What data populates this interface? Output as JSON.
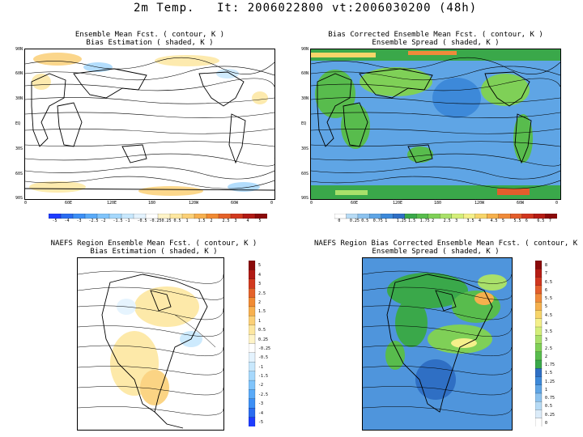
{
  "header": {
    "variable": "2m Temp.",
    "initial": "It: 2006022800",
    "valid": "vt:2006030200 (48h)"
  },
  "panels": {
    "top_left": {
      "title_line1": "Ensemble Mean Fcst. ( contour, K )",
      "title_line2": "Bias Estimation ( shaded, K )",
      "lat_ticks": [
        "90N",
        "60N",
        "30N",
        "EQ",
        "30S",
        "60S",
        "90S"
      ],
      "lon_ticks": [
        "0",
        "60E",
        "120E",
        "180",
        "120W",
        "60W",
        "0"
      ]
    },
    "top_right": {
      "title_line1": "Bias Corrected Ensemble Mean Fcst. ( contour, K )",
      "title_line2": "Ensemble Spread ( shaded, K )",
      "lat_ticks": [
        "90N",
        "60N",
        "30N",
        "EQ",
        "30S",
        "60S",
        "90S"
      ],
      "lon_ticks": [
        "0",
        "60E",
        "120E",
        "180",
        "120W",
        "60W",
        "0"
      ]
    },
    "bottom_left": {
      "title_line1": "NAEFS Region Ensemble Mean Fcst. ( contour, K )",
      "title_line2": "Bias Estimation ( shaded, K )"
    },
    "bottom_right": {
      "title_line1": "NAEFS Region Bias Corrected Ensemble Mean Fcst. ( contour, K )",
      "title_line2": "Ensemble Spread ( shaded, K )"
    }
  },
  "colorbars": {
    "bias_horizontal": {
      "labels": [
        "-5",
        "-4",
        "-3",
        "-2.5",
        "-2",
        "-1.5",
        "-1",
        "-0.5",
        "-0.25",
        "0.25",
        "0.5",
        "1",
        "1.5",
        "2",
        "2.5",
        "3",
        "4",
        "5"
      ],
      "colors": [
        "#1e3cff",
        "#2a6cf0",
        "#3d8ff5",
        "#5aaaf8",
        "#80c4fb",
        "#a6d8fc",
        "#c8e8fd",
        "#e4f3fe",
        "#ffffff",
        "#fff4c8",
        "#fde7a0",
        "#fbd077",
        "#f7b04f",
        "#f08a33",
        "#e4622a",
        "#d13a1f",
        "#b01a14",
        "#8a0a0a"
      ]
    },
    "spread_horizontal": {
      "labels": [
        "0",
        "0.25",
        "0.5",
        "0.75",
        "1",
        "1.25",
        "1.5",
        "1.75",
        "2",
        "2.5",
        "3",
        "3.5",
        "4",
        "4.5",
        "5",
        "5.5",
        "6",
        "6.5",
        "7"
      ],
      "colors": [
        "#ffffff",
        "#b7dbf5",
        "#8cc2ee",
        "#5fa5e5",
        "#3d89d9",
        "#2f6fc4",
        "#3aa84a",
        "#58bc4d",
        "#7fd057",
        "#a9e06a",
        "#d4ee7a",
        "#f4f08a",
        "#f7d56a",
        "#f5b04d",
        "#ef8a3a",
        "#e35e2c",
        "#d0361f",
        "#b51c14",
        "#8a0a0a"
      ]
    },
    "bias_vertical": {
      "labels": [
        "5",
        "4",
        "3",
        "2.5",
        "2",
        "1.5",
        "1",
        "0.5",
        "0.25",
        "-0.25",
        "-0.5",
        "-1",
        "-1.5",
        "-2",
        "-2.5",
        "-3",
        "-4",
        "-5"
      ],
      "colors": [
        "#8a0a0a",
        "#b01a14",
        "#d13a1f",
        "#e4622a",
        "#f08a33",
        "#f7b04f",
        "#fbd077",
        "#fde7a0",
        "#fff4c8",
        "#ffffff",
        "#e4f3fe",
        "#c8e8fd",
        "#a6d8fc",
        "#80c4fb",
        "#5aaaf8",
        "#3d8ff5",
        "#2a6cf0",
        "#1e3cff"
      ]
    },
    "spread_vertical": {
      "labels": [
        "8",
        "7",
        "6.5",
        "6",
        "5.5",
        "5",
        "4.5",
        "4",
        "3.5",
        "3",
        "2.5",
        "2",
        "1.75",
        "1.5",
        "1.25",
        "1",
        "0.75",
        "0.5",
        "0.25",
        "0"
      ],
      "colors": [
        "#8a0a0a",
        "#b51c14",
        "#d0361f",
        "#e35e2c",
        "#ef8a3a",
        "#f5b04d",
        "#f7d56a",
        "#f4f08a",
        "#d4ee7a",
        "#a9e06a",
        "#7fd057",
        "#58bc4d",
        "#3aa84a",
        "#2f6fc4",
        "#3d89d9",
        "#5fa5e5",
        "#8cc2ee",
        "#b7dbf5",
        "#dcecf9",
        "#ffffff"
      ]
    }
  }
}
